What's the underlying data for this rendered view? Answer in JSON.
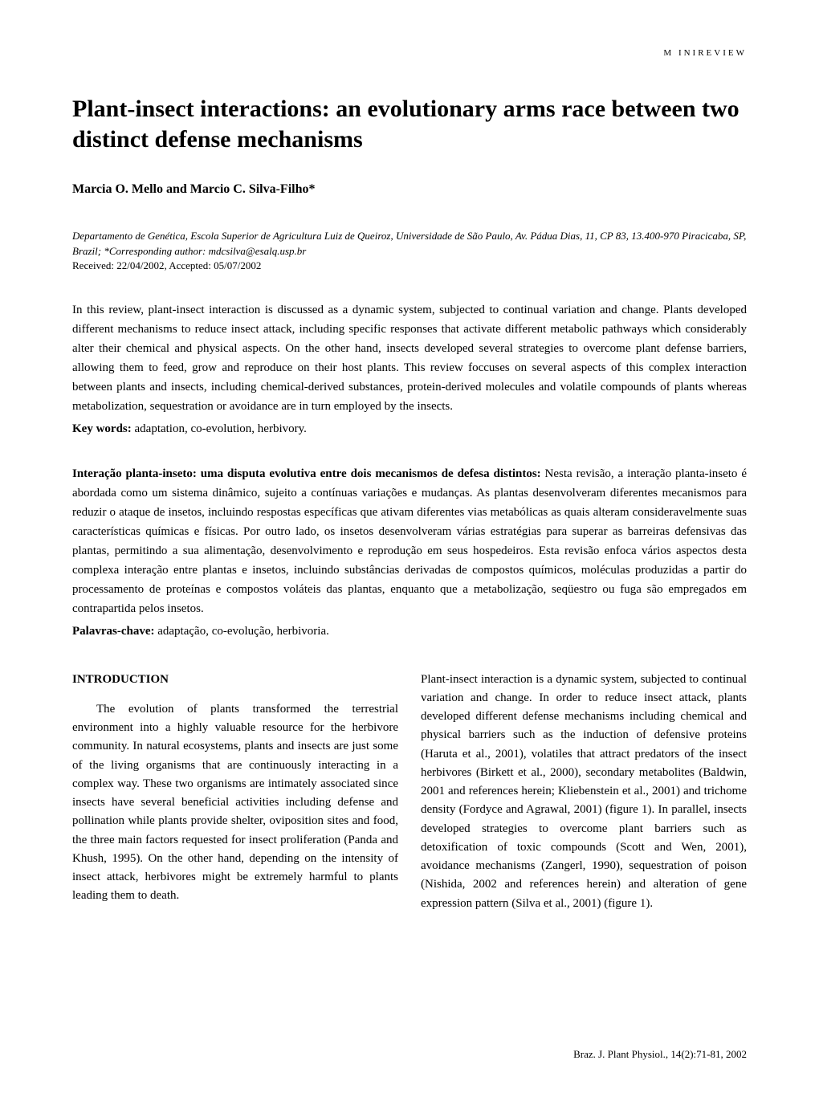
{
  "header": {
    "label": "M INIREVIEW"
  },
  "title": "Plant-insect interactions: an evolutionary arms race between two distinct defense mechanisms",
  "authors": "Marcia O. Mello and Marcio C. Silva-Filho*",
  "affiliation": "Departamento de Genética, Escola Superior de Agricultura Luiz de Queiroz, Universidade de São Paulo, Av. Pádua Dias, 11, CP 83, 13.400-970 Piracicaba, SP, Brazil; *Corresponding author: mdcsilva@esalq.usp.br",
  "received": "Received: 22/04/2002, Accepted: 05/07/2002",
  "abstract_en": "In this review, plant-insect interaction is discussed as a dynamic system, subjected to continual variation and change. Plants developed different mechanisms to  reduce insect attack, including specific responses that activate different metabolic pathways which considerably alter their chemical and physical aspects. On the other hand, insects developed several strategies to overcome plant defense barriers, allowing them to feed, grow and reproduce on their host plants. This review foccuses on several aspects of this complex interaction between plants and insects, including chemical-derived substances, protein-derived molecules and volatile compounds of plants whereas metabolization, sequestration or avoidance are in turn employed by the insects.",
  "keywords": {
    "label": "Key words:",
    "text": " adaptation, co-evolution, herbivory."
  },
  "abstract_pt": {
    "title": "Interação planta-inseto: uma disputa evolutiva entre dois mecanismos de defesa distintos:",
    "text": " Nesta revisão, a interação planta-inseto é abordada como um sistema dinâmico, sujeito a contínuas variações e mudanças. As plantas desenvolveram diferentes mecanismos para reduzir o ataque de insetos, incluindo respostas específicas que ativam diferentes vias metabólicas as quais alteram consideravelmente suas características químicas e físicas. Por outro lado, os insetos desenvolveram várias estratégias para superar as barreiras defensivas das plantas, permitindo a sua alimentação, desenvolvimento e reprodução em seus hospedeiros. Esta revisão enfoca vários aspectos desta complexa interação entre plantas  e insetos, incluindo substâncias derivadas de compostos químicos, moléculas produzidas a partir do processamento de proteínas e compostos voláteis das plantas, enquanto que a metabolização, seqüestro ou fuga são empregados em contrapartida pelos insetos."
  },
  "palavras": {
    "label": "Palavras-chave:",
    "text": " adaptação, co-evolução, herbivoria."
  },
  "section": {
    "heading": "INTRODUCTION",
    "para1": "The evolution of plants transformed the terrestrial environment into a highly valuable resource for the herbivore community. In natural ecosystems, plants and insects are just some of the living organisms that are continuously interacting in a complex way. These two organisms are intimately associated since insects have several beneficial activities including defense and pollination while plants provide shelter, oviposition sites and food, the three main factors requested for insect proliferation (Panda and Khush, 1995). On the other hand, depending on the intensity of insect attack, herbivores might be extremely harmful to plants leading them to death.",
    "para2": "Plant-insect interaction is a dynamic system, subjected to continual variation and change. In order to reduce insect attack, plants developed different defense mechanisms including chemical and physical barriers such as the induction of defensive proteins (Haruta et al., 2001), volatiles that attract predators of the insect herbivores (Birkett et al., 2000), secondary metabolites (Baldwin, 2001 and references herein; Kliebenstein et al., 2001) and trichome density (Fordyce and Agrawal, 2001) (figure 1). In parallel, insects developed strategies to overcome plant barriers such as detoxification of toxic compounds (Scott and Wen, 2001), avoidance mechanisms (Zangerl, 1990), sequestration of poison (Nishida, 2002 and references herein) and alteration of gene expression pattern (Silva et al., 2001) (figure 1)."
  },
  "footer": "Braz. J. Plant Physiol., 14(2):71-81, 2002"
}
